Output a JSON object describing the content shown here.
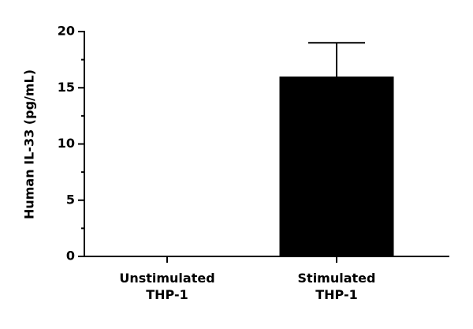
{
  "chart_data": {
    "type": "bar",
    "y_label": "Human IL-33 (pg/mL)",
    "categories": [
      "Unstimulated THP-1",
      "Stimulated THP-1"
    ],
    "values": [
      0,
      16
    ],
    "errors": [
      null,
      3
    ],
    "color": "#000000",
    "ylim": [
      0,
      20
    ],
    "yticks": [
      0,
      5,
      10,
      15,
      20
    ],
    "grid": false
  }
}
